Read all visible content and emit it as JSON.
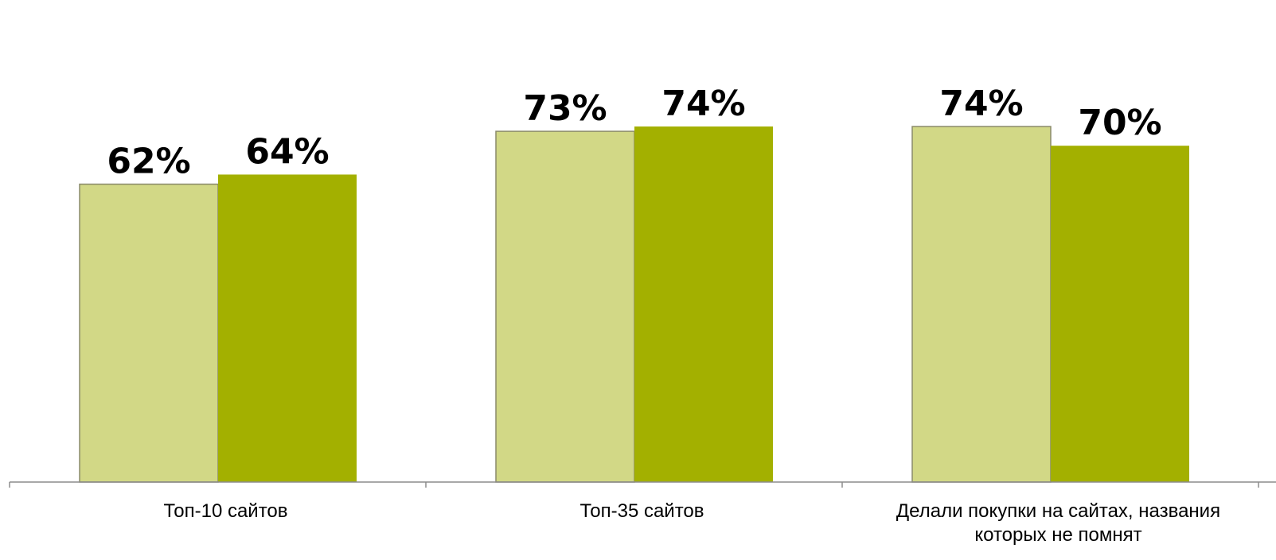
{
  "chart_data": {
    "type": "bar",
    "title": "",
    "xlabel": "",
    "ylabel": "",
    "ylim": [
      0,
      100
    ],
    "grid": false,
    "value_format": "{v}%",
    "categories": [
      [
        "Топ-10 сайтов"
      ],
      [
        "Топ-35 сайтов"
      ],
      [
        "Делали  покупки на сайтах, названия",
        "которых не помнят"
      ]
    ],
    "series": [
      {
        "values": [
          62,
          73,
          74
        ],
        "color": "#d2d886"
      },
      {
        "values": [
          64,
          74,
          70
        ],
        "color": "#a3b000"
      }
    ],
    "data_labels": [
      [
        "62%",
        "73%",
        "74%"
      ],
      [
        "64%",
        "74%",
        "70%"
      ]
    ]
  }
}
